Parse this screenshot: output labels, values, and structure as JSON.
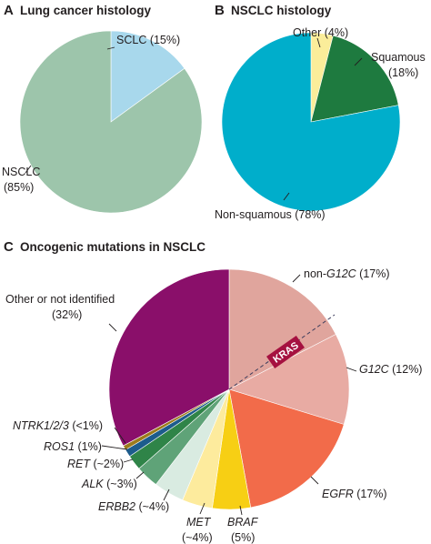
{
  "colors": {
    "lung_nsclc": "#9dc5ab",
    "lung_sclc": "#a8d8ec",
    "nsclc_nonsquamous": "#00aecb",
    "nsclc_squamous": "#1e7a3f",
    "nsclc_other": "#fbed9a",
    "mut_other": "#8a0f6a",
    "mut_kras_non_g12c": "#e0a59d",
    "mut_kras_g12c": "#e8aba3",
    "mut_egfr": "#f26b4a",
    "mut_braf": "#f7cf14",
    "mut_met": "#fdeb9d",
    "mut_erbb2": "#d9ebe1",
    "mut_alk": "#5fa378",
    "mut_ret": "#2f8448",
    "mut_ros1": "#1d5c8c",
    "mut_ntrk": "#9c7b1c",
    "kras_badge": "#a51140"
  },
  "panelA": {
    "letter": "A",
    "title": "Lung cancer histology",
    "labels": {
      "sclc_1": "SCLC (15%)",
      "nsclc_1": "NSCLC",
      "nsclc_2": "(85%)"
    }
  },
  "panelB": {
    "letter": "B",
    "title": "NSCLC histology",
    "labels": {
      "other": "Other (4%)",
      "squamous_1": "Squamous",
      "squamous_2": "(18%)",
      "nonsq": "Non-squamous (78%)"
    }
  },
  "panelC": {
    "letter": "C",
    "title": "Oncogenic mutations in NSCLC",
    "kras": "KRAS",
    "labels": {
      "nong12c_a": "non-",
      "nong12c_b": "G12C",
      "nong12c_c": " (17%)",
      "g12c_a": "G12C",
      "g12c_b": " (12%)",
      "egfr_a": "EGFR",
      "egfr_b": " (17%)",
      "braf_1": "BRAF",
      "braf_2": "(5%)",
      "met_1": "MET",
      "met_2": "(~4%)",
      "erbb2_a": "ERBB2",
      "erbb2_b": " (~4%)",
      "alk_a": "ALK",
      "alk_b": " (~3%)",
      "ret_a": "RET",
      "ret_b": " (~2%)",
      "ros1_a": "ROS1",
      "ros1_b": " (1%)",
      "ntrk_a": "NTRK1/2/3",
      "ntrk_b": " (<1%)",
      "other_1": "Other or not identified",
      "other_2": "(32%)"
    }
  },
  "chart_data": [
    {
      "type": "pie",
      "title": "Lung cancer histology",
      "categories": [
        "SCLC",
        "NSCLC"
      ],
      "values": [
        15,
        85
      ]
    },
    {
      "type": "pie",
      "title": "NSCLC histology",
      "categories": [
        "Other",
        "Squamous",
        "Non-squamous"
      ],
      "values": [
        4,
        18,
        78
      ]
    },
    {
      "type": "pie",
      "title": "Oncogenic mutations in NSCLC",
      "categories": [
        "KRAS non-G12C",
        "KRAS G12C",
        "EGFR",
        "BRAF",
        "MET",
        "ERBB2",
        "ALK",
        "RET",
        "ROS1",
        "NTRK1/2/3",
        "Other or not identified"
      ],
      "values": [
        17,
        12,
        17,
        5,
        4,
        4,
        3,
        2,
        1,
        0.6,
        32
      ],
      "approximate": [
        "MET",
        "ERBB2",
        "ALK",
        "RET"
      ]
    }
  ]
}
